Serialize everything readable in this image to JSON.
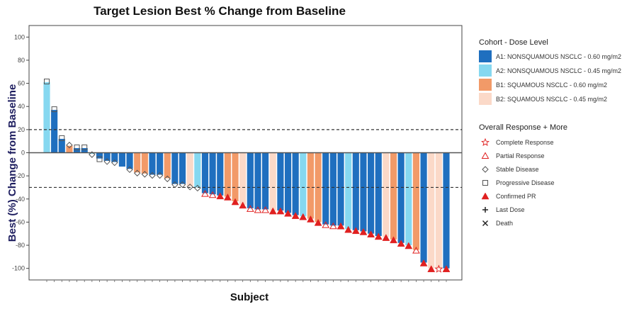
{
  "chart_data": {
    "type": "bar",
    "title": "Target Lesion Best % Change from Baseline",
    "xlabel": "Subject",
    "ylabel": "Best (%) Change from Baseline",
    "ylim": [
      -110,
      110
    ],
    "yticks": [
      100,
      80,
      60,
      40,
      20,
      0,
      -20,
      -40,
      -60,
      -80,
      -100
    ],
    "reference_lines": [
      20,
      -30
    ],
    "grid": false,
    "legend_placement": "right",
    "cohort_legend": {
      "title": "Cohort - Dose Level",
      "items": [
        {
          "key": "A1",
          "label": "A1: NONSQUAMOUS NSCLC - 0.60 mg/m2",
          "color": "#1f6fbf"
        },
        {
          "key": "A2",
          "label": "A2: NONSQUAMOUS NSCLC - 0.45 mg/m2",
          "color": "#86d8f0"
        },
        {
          "key": "B1",
          "label": "B1: SQUAMOUS NSCLC - 0.60 mg/m2",
          "color": "#f29a68"
        },
        {
          "key": "B2",
          "label": "B2: SQUAMOUS NSCLC - 0.45 mg/m2",
          "color": "#fbd9c8"
        }
      ]
    },
    "response_legend": {
      "title": "Overall Response + More",
      "items": [
        {
          "key": "CR",
          "label": "Complete Response",
          "icon": "star-outline-icon"
        },
        {
          "key": "PR",
          "label": "Partial Response",
          "icon": "triangle-outline-icon"
        },
        {
          "key": "SD",
          "label": "Stable Disease",
          "icon": "diamond-outline-icon"
        },
        {
          "key": "PD",
          "label": "Progressive Disease",
          "icon": "square-outline-icon"
        },
        {
          "key": "cPR",
          "label": "Confirmed PR",
          "icon": "triangle-filled-icon"
        },
        {
          "key": "LD",
          "label": "Last Dose",
          "icon": "plus-icon"
        },
        {
          "key": "D",
          "label": "Death",
          "icon": "x-icon"
        }
      ]
    },
    "subjects": [
      {
        "value": 61,
        "cohort": "A2",
        "response": "PD"
      },
      {
        "value": 37,
        "cohort": "A1",
        "response": "PD"
      },
      {
        "value": 12,
        "cohort": "A1",
        "response": "PD"
      },
      {
        "value": 6,
        "cohort": "B1",
        "response": "SD"
      },
      {
        "value": 4,
        "cohort": "A1",
        "response": "PD"
      },
      {
        "value": 4,
        "cohort": "A1",
        "response": "PD"
      },
      {
        "value": -1,
        "cohort": "A2",
        "response": "SD"
      },
      {
        "value": -5,
        "cohort": "A1",
        "response": "PD"
      },
      {
        "value": -7,
        "cohort": "A1",
        "response": "SD"
      },
      {
        "value": -8,
        "cohort": "A1",
        "response": "SD"
      },
      {
        "value": -12,
        "cohort": "A1",
        "response": "none"
      },
      {
        "value": -14,
        "cohort": "A1",
        "response": "SD"
      },
      {
        "value": -17,
        "cohort": "B1",
        "response": "SD"
      },
      {
        "value": -18,
        "cohort": "B1",
        "response": "SD"
      },
      {
        "value": -19,
        "cohort": "A1",
        "response": "SD"
      },
      {
        "value": -19,
        "cohort": "A1",
        "response": "SD"
      },
      {
        "value": -22,
        "cohort": "B1",
        "response": "SD"
      },
      {
        "value": -27,
        "cohort": "A1",
        "response": "SD"
      },
      {
        "value": -27,
        "cohort": "A1",
        "response": "SD"
      },
      {
        "value": -29,
        "cohort": "B2",
        "response": "SD"
      },
      {
        "value": -30,
        "cohort": "A2",
        "response": "SD"
      },
      {
        "value": -35,
        "cohort": "A1",
        "response": "PR"
      },
      {
        "value": -36,
        "cohort": "A1",
        "response": "PR"
      },
      {
        "value": -37,
        "cohort": "A1",
        "response": "cPR"
      },
      {
        "value": -38,
        "cohort": "B1",
        "response": "cPR"
      },
      {
        "value": -42,
        "cohort": "B1",
        "response": "cPR"
      },
      {
        "value": -45,
        "cohort": "B2",
        "response": "cPR"
      },
      {
        "value": -48,
        "cohort": "A1",
        "response": "PR"
      },
      {
        "value": -49,
        "cohort": "A1",
        "response": "PR"
      },
      {
        "value": -49,
        "cohort": "A1",
        "response": "PR"
      },
      {
        "value": -50,
        "cohort": "B2",
        "response": "cPR"
      },
      {
        "value": -50,
        "cohort": "A1",
        "response": "cPR"
      },
      {
        "value": -52,
        "cohort": "A1",
        "response": "cPR"
      },
      {
        "value": -54,
        "cohort": "A1",
        "response": "cPR"
      },
      {
        "value": -55,
        "cohort": "A2",
        "response": "cPR"
      },
      {
        "value": -57,
        "cohort": "B1",
        "response": "cPR"
      },
      {
        "value": -60,
        "cohort": "B1",
        "response": "cPR"
      },
      {
        "value": -62,
        "cohort": "A1",
        "response": "PR"
      },
      {
        "value": -63,
        "cohort": "A1",
        "response": "PR"
      },
      {
        "value": -63,
        "cohort": "A1",
        "response": "cPR"
      },
      {
        "value": -66,
        "cohort": "A2",
        "response": "cPR"
      },
      {
        "value": -67,
        "cohort": "A1",
        "response": "cPR"
      },
      {
        "value": -68,
        "cohort": "A1",
        "response": "cPR"
      },
      {
        "value": -70,
        "cohort": "A1",
        "response": "cPR"
      },
      {
        "value": -72,
        "cohort": "A1",
        "response": "cPR"
      },
      {
        "value": -73,
        "cohort": "B2",
        "response": "cPR"
      },
      {
        "value": -75,
        "cohort": "B1",
        "response": "cPR"
      },
      {
        "value": -78,
        "cohort": "A1",
        "response": "cPR"
      },
      {
        "value": -80,
        "cohort": "A2",
        "response": "cPR"
      },
      {
        "value": -84,
        "cohort": "B1",
        "response": "PR"
      },
      {
        "value": -95,
        "cohort": "A1",
        "response": "cPR"
      },
      {
        "value": -100,
        "cohort": "B2",
        "response": "cPR"
      },
      {
        "value": -100,
        "cohort": "B2",
        "response": "CR"
      },
      {
        "value": -100,
        "cohort": "A1",
        "response": "cPR"
      }
    ]
  }
}
